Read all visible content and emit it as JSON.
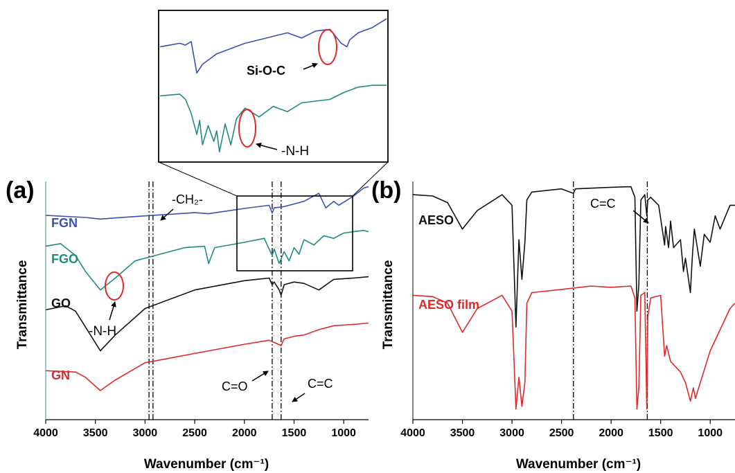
{
  "colors": {
    "FGN": "#3a4fb5",
    "FGO": "#1f8a80",
    "GO": "#111111",
    "GN": "#e02828",
    "AESO": "#111111",
    "AESO film": "#e02828",
    "circle": "#e02828"
  },
  "chart_data": [
    {
      "panel": "(a)",
      "type": "line",
      "xlabel": "Wavenumber (cm⁻¹)",
      "ylabel": "Transmittance",
      "xlim": [
        4000,
        750
      ],
      "x_reversed": true,
      "xticks": [
        4000,
        3500,
        3000,
        2500,
        2000,
        1500,
        1000
      ],
      "grid": false,
      "y_units": "arbitrary (curves offset vertically)",
      "reference_lines": [
        2960,
        2920,
        1720,
        1630
      ],
      "series": [
        {
          "name": "FGN",
          "x": [
            4000,
            3800,
            3600,
            3450,
            3300,
            3000,
            2500,
            2360,
            2000,
            1750,
            1720,
            1700,
            1600,
            1500,
            1400,
            1250,
            1180,
            1100,
            1050,
            900,
            800,
            750
          ],
          "y": [
            7.72,
            7.68,
            7.64,
            7.58,
            7.62,
            7.7,
            7.82,
            7.78,
            7.98,
            8.1,
            7.8,
            8.0,
            8.05,
            8.15,
            8.25,
            8.55,
            8.0,
            8.25,
            8.1,
            8.45,
            8.75,
            8.8
          ]
        },
        {
          "name": "FGO",
          "x": [
            4000,
            3850,
            3700,
            3600,
            3450,
            3300,
            3100,
            2900,
            2600,
            2400,
            2360,
            2300,
            2000,
            1800,
            1720,
            1700,
            1650,
            1600,
            1550,
            1500,
            1450,
            1400,
            1300,
            1200,
            1100,
            1000,
            900,
            800,
            750
          ],
          "y": [
            6.55,
            6.65,
            6.2,
            5.6,
            4.9,
            5.35,
            6.0,
            6.2,
            6.5,
            6.55,
            5.9,
            6.5,
            6.7,
            6.85,
            6.2,
            6.45,
            5.9,
            6.35,
            6.0,
            6.5,
            6.25,
            6.8,
            6.6,
            6.95,
            6.85,
            7.05,
            7.1,
            7.15,
            7.1
          ]
        },
        {
          "name": "GO",
          "x": [
            4000,
            3800,
            3700,
            3600,
            3450,
            3300,
            3000,
            2500,
            2000,
            1750,
            1720,
            1700,
            1650,
            1630,
            1600,
            1500,
            1400,
            1250,
            1100,
            900,
            750
          ],
          "y": [
            4.15,
            4.3,
            4.1,
            3.5,
            2.6,
            3.2,
            4.2,
            4.9,
            5.25,
            5.35,
            5.1,
            5.2,
            4.9,
            4.7,
            5.1,
            5.2,
            5.15,
            4.9,
            5.3,
            5.35,
            5.4
          ]
        },
        {
          "name": "GN",
          "x": [
            4000,
            3700,
            3600,
            3450,
            3300,
            3000,
            2500,
            2360,
            2000,
            1750,
            1630,
            1600,
            1500,
            1400,
            1250,
            1100,
            900,
            750
          ],
          "y": [
            1.85,
            1.8,
            1.6,
            1.1,
            1.5,
            2.15,
            2.5,
            2.6,
            2.85,
            3.0,
            2.8,
            3.05,
            3.15,
            3.2,
            3.4,
            3.55,
            3.6,
            3.65
          ]
        }
      ],
      "annotations": [
        "-CH₂-",
        "-N-H",
        "C=O",
        "C=C"
      ],
      "inset": {
        "xlim": [
          1850,
          1050
        ],
        "annotations": [
          "Si-O-C",
          "-N-H"
        ],
        "series": [
          {
            "name": "FGN",
            "x": [
              1850,
              1780,
              1760,
              1740,
              1720,
              1700,
              1650,
              1600,
              1550,
              1500,
              1450,
              1400,
              1350,
              1300,
              1250,
              1210,
              1190,
              1180,
              1150,
              1100,
              1080,
              1050
            ],
            "y": [
              9.0,
              9.2,
              9.1,
              9.3,
              7.5,
              8.0,
              8.6,
              8.9,
              9.2,
              9.4,
              9.6,
              9.8,
              9.5,
              9.9,
              10.0,
              9.2,
              9.0,
              9.4,
              9.8,
              10.1,
              10.3,
              10.6
            ]
          },
          {
            "name": "FGO",
            "x": [
              1850,
              1780,
              1760,
              1740,
              1720,
              1710,
              1700,
              1680,
              1660,
              1650,
              1640,
              1620,
              1600,
              1580,
              1550,
              1500,
              1450,
              1400,
              1350,
              1300,
              1250,
              1200,
              1150,
              1100,
              1050
            ],
            "y": [
              6.2,
              6.3,
              6.0,
              5.2,
              4.0,
              4.8,
              3.4,
              4.5,
              3.6,
              4.2,
              3.0,
              4.6,
              3.4,
              4.9,
              5.5,
              5.0,
              5.6,
              5.3,
              5.8,
              5.9,
              6.0,
              6.4,
              6.7,
              6.8,
              6.8
            ]
          }
        ]
      }
    },
    {
      "panel": "(b)",
      "type": "line",
      "xlabel": "Wavenumber (cm⁻¹)",
      "ylabel": "Transmittance",
      "xlim": [
        4000,
        750
      ],
      "x_reversed": true,
      "xticks": [
        4000,
        3500,
        3000,
        2500,
        2000,
        1500,
        1000
      ],
      "grid": false,
      "y_units": "arbitrary (curves offset vertically)",
      "reference_lines": [
        2380,
        1635
      ],
      "series": [
        {
          "name": "AESO",
          "x": [
            4000,
            3800,
            3650,
            3500,
            3350,
            3100,
            3000,
            2960,
            2930,
            2900,
            2870,
            2850,
            2800,
            2500,
            2380,
            2360,
            2000,
            1800,
            1760,
            1740,
            1720,
            1700,
            1660,
            1640,
            1630,
            1600,
            1520,
            1460,
            1450,
            1420,
            1400,
            1370,
            1300,
            1270,
            1250,
            1200,
            1180,
            1160,
            1100,
            1060,
            1000,
            950,
            900,
            800,
            750
          ],
          "y": [
            8.5,
            8.45,
            8.2,
            7.2,
            7.9,
            8.5,
            8.1,
            3.5,
            6.8,
            5.3,
            6.7,
            8.3,
            8.6,
            8.72,
            8.55,
            8.72,
            8.78,
            8.8,
            8.4,
            4.1,
            5.1,
            8.3,
            8.5,
            7.7,
            8.3,
            8.4,
            8.1,
            6.6,
            7.3,
            6.5,
            7.5,
            6.5,
            6.8,
            5.6,
            6.1,
            4.8,
            6.2,
            7.2,
            5.8,
            7.0,
            6.7,
            7.7,
            7.2,
            8.1,
            8.1
          ]
        },
        {
          "name": "AESO film",
          "x": [
            4000,
            3800,
            3650,
            3500,
            3350,
            3100,
            3000,
            2960,
            2930,
            2900,
            2870,
            2850,
            2800,
            2500,
            2200,
            2000,
            1800,
            1760,
            1740,
            1720,
            1700,
            1660,
            1640,
            1630,
            1600,
            1500,
            1460,
            1440,
            1400,
            1300,
            1250,
            1200,
            1170,
            1150,
            1100,
            1000,
            900,
            800,
            750
          ],
          "y": [
            4.7,
            4.65,
            4.4,
            3.3,
            4.2,
            4.7,
            4.1,
            0.4,
            1.6,
            0.5,
            1.4,
            4.4,
            4.8,
            4.92,
            5.05,
            5.0,
            5.05,
            4.6,
            0.4,
            1.2,
            4.7,
            4.8,
            0.4,
            3.9,
            4.6,
            4.7,
            2.4,
            2.8,
            2.2,
            1.8,
            1.4,
            0.7,
            1.2,
            0.8,
            1.4,
            2.6,
            3.4,
            4.2,
            4.4
          ]
        }
      ],
      "annotations": [
        "C=C"
      ]
    }
  ]
}
